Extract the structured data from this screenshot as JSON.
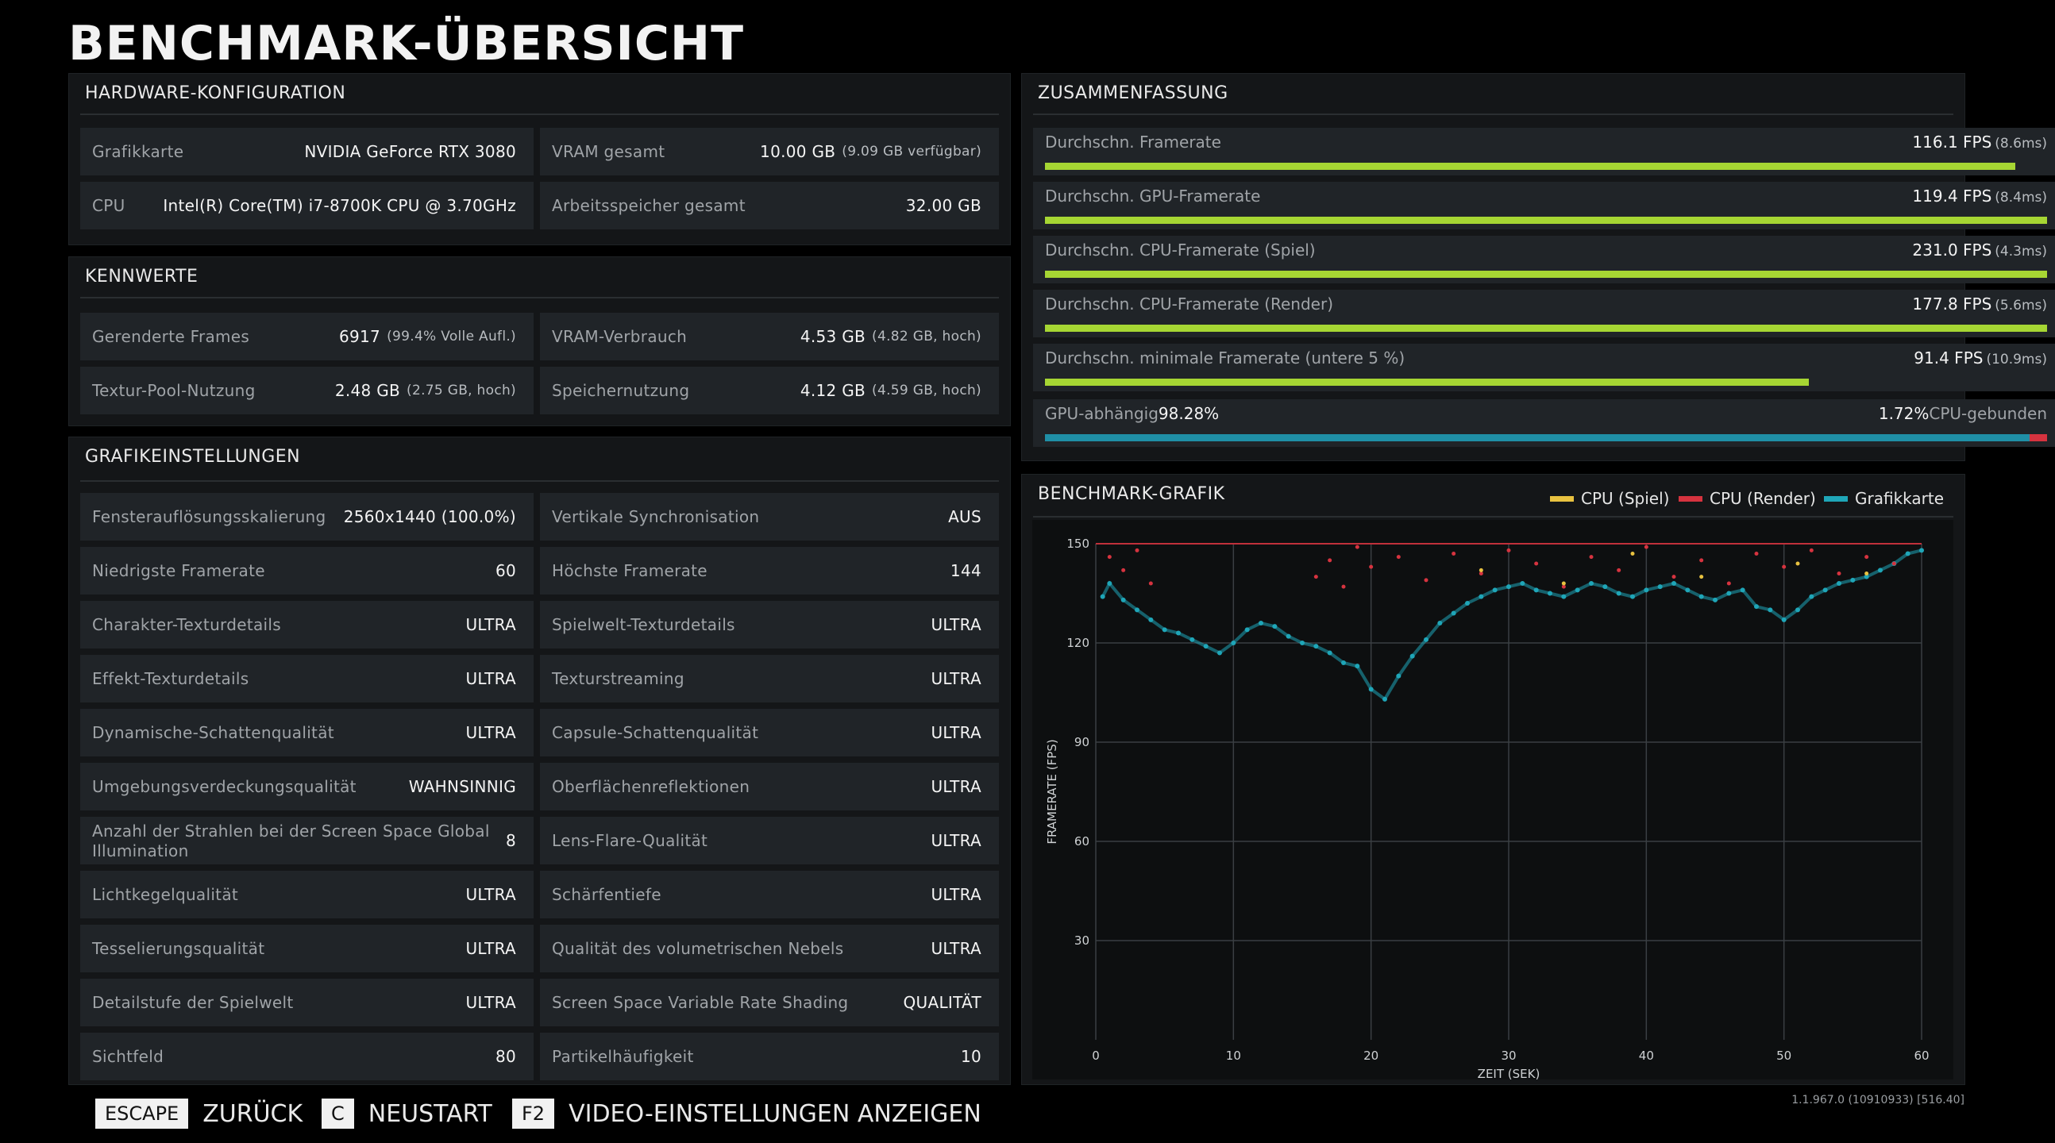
{
  "page_title": "BENCHMARK-ÜBERSICHT",
  "hardware": {
    "title": "HARDWARE-KONFIGURATION",
    "cells": [
      {
        "label": "Grafikkarte",
        "value": "NVIDIA GeForce RTX 3080",
        "sub": ""
      },
      {
        "label": "VRAM gesamt",
        "value": "10.00 GB",
        "sub": "(9.09 GB verfügbar)"
      },
      {
        "label": "CPU",
        "value": "Intel(R) Core(TM) i7-8700K CPU @ 3.70GHz",
        "sub": ""
      },
      {
        "label": "Arbeitsspeicher gesamt",
        "value": "32.00 GB",
        "sub": ""
      }
    ]
  },
  "kennwerte": {
    "title": "KENNWERTE",
    "cells": [
      {
        "label": "Gerenderte Frames",
        "value": "6917",
        "sub": "(99.4% Volle Aufl.)"
      },
      {
        "label": "VRAM-Verbrauch",
        "value": "4.53 GB",
        "sub": "(4.82 GB, hoch)"
      },
      {
        "label": "Textur-Pool-Nutzung",
        "value": "2.48 GB",
        "sub": "(2.75 GB, hoch)"
      },
      {
        "label": "Speichernutzung",
        "value": "4.12 GB",
        "sub": "(4.59 GB, hoch)"
      }
    ]
  },
  "grafik": {
    "title": "GRAFIKEINSTELLUNGEN",
    "rows": [
      [
        {
          "label": "Fensterauflösungsskalierung",
          "value": "2560x1440 (100.0%)"
        },
        {
          "label": "Vertikale Synchronisation",
          "value": "AUS"
        }
      ],
      [
        {
          "label": "Niedrigste Framerate",
          "value": "60"
        },
        {
          "label": "Höchste Framerate",
          "value": "144"
        }
      ],
      [
        {
          "label": "Charakter-Texturdetails",
          "value": "ULTRA"
        },
        {
          "label": "Spielwelt-Texturdetails",
          "value": "ULTRA"
        }
      ],
      [
        {
          "label": "Effekt-Texturdetails",
          "value": "ULTRA"
        },
        {
          "label": "Texturstreaming",
          "value": "ULTRA"
        }
      ],
      [
        {
          "label": "Dynamische-Schattenqualität",
          "value": "ULTRA"
        },
        {
          "label": "Capsule-Schattenqualität",
          "value": "ULTRA"
        }
      ],
      [
        {
          "label": "Umgebungsverdeckungsqualität",
          "value": "WAHNSINNIG"
        },
        {
          "label": "Oberflächenreflektionen",
          "value": "ULTRA"
        }
      ],
      [
        {
          "label": "Anzahl der Strahlen bei der Screen Space Global Illumination",
          "value": "8"
        },
        {
          "label": "Lens-Flare-Qualität",
          "value": "ULTRA"
        }
      ],
      [
        {
          "label": "Lichtkegelqualität",
          "value": "ULTRA"
        },
        {
          "label": "Schärfentiefe",
          "value": "ULTRA"
        }
      ],
      [
        {
          "label": "Tesselierungsqualität",
          "value": "ULTRA"
        },
        {
          "label": "Qualität des volumetrischen Nebels",
          "value": "ULTRA"
        }
      ],
      [
        {
          "label": "Detailstufe der Spielwelt",
          "value": "ULTRA"
        },
        {
          "label": "Screen Space Variable Rate Shading",
          "value": "QUALITÄT"
        }
      ],
      [
        {
          "label": "Sichtfeld",
          "value": "80"
        },
        {
          "label": "Partikelhäufigkeit",
          "value": "10"
        }
      ]
    ]
  },
  "summary": {
    "title": "ZUSAMMENFASSUNG",
    "rows": [
      {
        "label": "Durchschn. Framerate",
        "value": "116.1 FPS",
        "sub": "(8.6ms)",
        "fraction": 0.968
      },
      {
        "label": "Durchschn. GPU-Framerate",
        "value": "119.4 FPS",
        "sub": "(8.4ms)",
        "fraction": 1.0
      },
      {
        "label": "Durchschn. CPU-Framerate (Spiel)",
        "value": "231.0 FPS",
        "sub": "(4.3ms)",
        "fraction": 1.0
      },
      {
        "label": "Durchschn. CPU-Framerate (Render)",
        "value": "177.8 FPS",
        "sub": "(5.6ms)",
        "fraction": 1.0
      },
      {
        "label": "Durchschn. minimale Framerate (untere 5 %)",
        "value": "91.4 FPS",
        "sub": "(10.9ms)",
        "fraction": 0.762
      }
    ],
    "split": {
      "gpu_label": "GPU-abhängig",
      "gpu_value": "98.28%",
      "cpu_value": "1.72%",
      "cpu_label": "CPU-gebunden",
      "cpu_fraction": 0.0172
    }
  },
  "chart": {
    "title": "BENCHMARK-GRAFIK",
    "legend": [
      {
        "name": "CPU (Spiel)",
        "color": "#e8c240"
      },
      {
        "name": "CPU (Render)",
        "color": "#d6333f"
      },
      {
        "name": "Grafikkarte",
        "color": "#1fa6b8"
      }
    ]
  },
  "chart_data": {
    "type": "scatter",
    "title": "BENCHMARK-GRAFIK",
    "xlabel": "ZEIT (SEK)",
    "ylabel": "FRAMERATE (FPS)",
    "xlim": [
      0,
      60
    ],
    "ylim": [
      0,
      150
    ],
    "x_ticks": [
      0,
      10,
      20,
      30,
      40,
      50,
      60
    ],
    "y_ticks": [
      30,
      60,
      90,
      120,
      150
    ],
    "grid": true,
    "legend_position": "top-right",
    "series": [
      {
        "name": "CPU (Spiel)",
        "color": "#e8c240",
        "x": [
          28,
          34,
          39,
          44,
          51,
          56
        ],
        "y": [
          142,
          138,
          147,
          140,
          144,
          141
        ]
      },
      {
        "name": "CPU (Render)",
        "color": "#d6333f",
        "x": [
          1,
          2,
          3,
          4,
          16,
          17,
          18,
          19,
          20,
          22,
          24,
          26,
          28,
          30,
          32,
          34,
          36,
          38,
          40,
          42,
          44,
          46,
          48,
          50,
          52,
          54,
          56,
          58
        ],
        "y": [
          146,
          142,
          148,
          138,
          140,
          145,
          137,
          149,
          143,
          146,
          139,
          147,
          141,
          148,
          144,
          137,
          146,
          142,
          149,
          140,
          145,
          138,
          147,
          143,
          148,
          141,
          146,
          144
        ]
      },
      {
        "name": "Grafikkarte",
        "color": "#1fa6b8",
        "x": [
          0.5,
          1,
          2,
          3,
          4,
          5,
          6,
          7,
          8,
          9,
          10,
          11,
          12,
          13,
          14,
          15,
          16,
          17,
          18,
          19,
          20,
          21,
          22,
          23,
          24,
          25,
          26,
          27,
          28,
          29,
          30,
          31,
          32,
          33,
          34,
          35,
          36,
          37,
          38,
          39,
          40,
          41,
          42,
          43,
          44,
          45,
          46,
          47,
          48,
          49,
          50,
          51,
          52,
          53,
          54,
          55,
          56,
          57,
          58,
          59,
          60
        ],
        "y": [
          134,
          138,
          133,
          130,
          127,
          124,
          123,
          121,
          119,
          117,
          120,
          124,
          126,
          125,
          122,
          120,
          119,
          117,
          114,
          113,
          106,
          103,
          110,
          116,
          121,
          126,
          129,
          132,
          134,
          136,
          137,
          138,
          136,
          135,
          134,
          136,
          138,
          137,
          135,
          134,
          136,
          137,
          138,
          136,
          134,
          133,
          135,
          136,
          131,
          130,
          127,
          130,
          134,
          136,
          138,
          139,
          140,
          142,
          144,
          147,
          148
        ]
      }
    ]
  },
  "footer": {
    "items": [
      {
        "key": "ESCAPE",
        "label": "ZURÜCK"
      },
      {
        "key": "C",
        "label": "NEUSTART"
      },
      {
        "key": "F2",
        "label": "VIDEO-EINSTELLUNGEN ANZEIGEN"
      }
    ],
    "version": "1.1.967.0 (10910933) [516.40]"
  }
}
